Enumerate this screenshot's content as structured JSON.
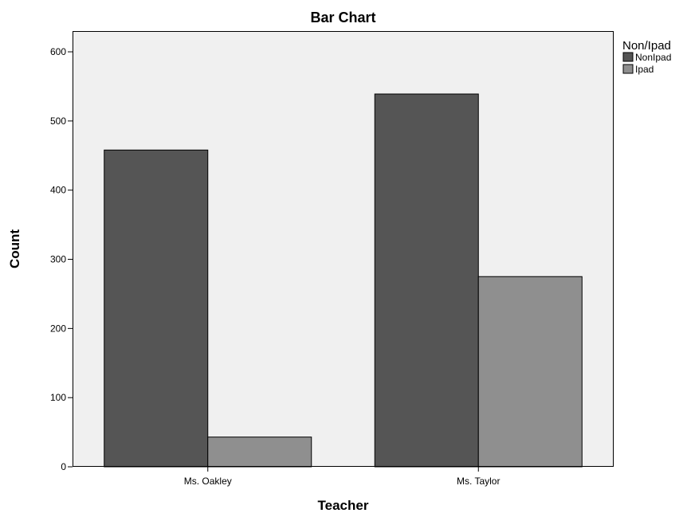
{
  "chart_data": {
    "type": "bar",
    "title": "Bar Chart",
    "xlabel": "Teacher",
    "ylabel": "Count",
    "categories": [
      "Ms. Oakley",
      "Ms. Taylor"
    ],
    "series": [
      {
        "name": "NonIpad",
        "values": [
          458,
          539
        ],
        "color": "#555555"
      },
      {
        "name": "Ipad",
        "values": [
          43,
          275
        ],
        "color": "#8f8f8f"
      }
    ],
    "ylim": [
      0,
      630
    ],
    "yticks": [
      0,
      100,
      200,
      300,
      400,
      500,
      600
    ],
    "legend": {
      "title": "Non/Ipad",
      "position": "right"
    },
    "grid": false,
    "plot_background": "#f0f0f0"
  }
}
